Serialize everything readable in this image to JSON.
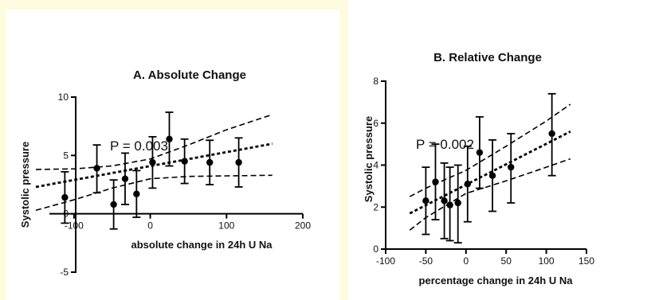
{
  "chart_data": [
    {
      "type": "scatter",
      "title": "A. Absolute Change",
      "xlabel": "absolute change in 24h U Na",
      "ylabel": "Systolic pressure",
      "annotation": "P = 0.003",
      "xlim": [
        -150,
        200
      ],
      "ylim": [
        -5,
        10
      ],
      "xticks": [
        -100,
        0,
        100,
        200
      ],
      "xtick_labels": [
        "-100",
        "0",
        "100",
        "200"
      ],
      "yticks": [
        -5,
        0,
        5,
        10
      ],
      "ytick_labels": [
        "-5",
        "0",
        "5",
        "10"
      ],
      "grid": false,
      "points": [
        {
          "x": -112,
          "y": 1.4,
          "lo": -0.8,
          "hi": 3.6
        },
        {
          "x": -70,
          "y": 3.9,
          "lo": 1.8,
          "hi": 5.9
        },
        {
          "x": -48,
          "y": 0.8,
          "lo": -1.3,
          "hi": 2.9
        },
        {
          "x": -33,
          "y": 3.0,
          "lo": 0.8,
          "hi": 5.2
        },
        {
          "x": -18,
          "y": 1.7,
          "lo": -0.3,
          "hi": 3.7
        },
        {
          "x": 3,
          "y": 4.4,
          "lo": 2.2,
          "hi": 6.6
        },
        {
          "x": 25,
          "y": 6.4,
          "lo": 4.1,
          "hi": 8.7
        },
        {
          "x": 45,
          "y": 4.5,
          "lo": 2.6,
          "hi": 6.4
        },
        {
          "x": 78,
          "y": 4.4,
          "lo": 2.5,
          "hi": 6.3
        },
        {
          "x": 116,
          "y": 4.4,
          "lo": 2.3,
          "hi": 6.5
        }
      ],
      "fit": {
        "x": [
          -150,
          160
        ],
        "y": [
          2.3,
          6.0
        ]
      },
      "ci_upper": {
        "x": [
          -150,
          -100,
          -50,
          0,
          50,
          100,
          160
        ],
        "y": [
          3.8,
          3.85,
          4.1,
          4.7,
          5.9,
          7.2,
          8.5
        ]
      },
      "ci_lower": {
        "x": [
          -150,
          -100,
          -50,
          0,
          50,
          100,
          160
        ],
        "y": [
          0.3,
          1.2,
          2.2,
          3.0,
          3.2,
          3.25,
          3.3
        ]
      }
    },
    {
      "type": "scatter",
      "title": "B. Relative Change",
      "xlabel": "percentage change in 24h U Na",
      "ylabel": "Systolic pressure",
      "annotation": "P = 0.002",
      "xlim": [
        -100,
        150
      ],
      "ylim": [
        0,
        8
      ],
      "xticks": [
        -100,
        -50,
        0,
        50,
        100,
        150
      ],
      "xtick_labels": [
        "-100",
        "-50",
        "0",
        "50",
        "100",
        "150"
      ],
      "yticks": [
        0,
        2,
        4,
        6,
        8
      ],
      "ytick_labels": [
        "0",
        "2",
        "4",
        "6",
        "8"
      ],
      "grid": false,
      "points": [
        {
          "x": -50,
          "y": 2.3,
          "lo": 0.7,
          "hi": 3.9
        },
        {
          "x": -38,
          "y": 3.2,
          "lo": 1.4,
          "hi": 5.0
        },
        {
          "x": -27,
          "y": 2.3,
          "lo": 0.5,
          "hi": 4.1
        },
        {
          "x": -20,
          "y": 2.1,
          "lo": 0.4,
          "hi": 3.9
        },
        {
          "x": -10,
          "y": 2.2,
          "lo": 0.3,
          "hi": 4.0
        },
        {
          "x": 2,
          "y": 3.1,
          "lo": 1.3,
          "hi": 4.9
        },
        {
          "x": 17,
          "y": 4.6,
          "lo": 2.9,
          "hi": 6.3
        },
        {
          "x": 33,
          "y": 3.5,
          "lo": 1.8,
          "hi": 5.2
        },
        {
          "x": 56,
          "y": 3.9,
          "lo": 2.2,
          "hi": 5.5
        },
        {
          "x": 107,
          "y": 5.5,
          "lo": 3.5,
          "hi": 7.4
        }
      ],
      "fit": {
        "x": [
          -70,
          130
        ],
        "y": [
          1.7,
          5.6
        ]
      },
      "ci_upper": {
        "x": [
          -70,
          -50,
          0,
          50,
          100,
          130
        ],
        "y": [
          2.5,
          2.9,
          3.75,
          4.9,
          6.1,
          6.9
        ]
      },
      "ci_lower": {
        "x": [
          -70,
          -50,
          0,
          50,
          100,
          130
        ],
        "y": [
          0.9,
          1.5,
          2.65,
          3.25,
          3.9,
          4.3
        ]
      }
    }
  ]
}
